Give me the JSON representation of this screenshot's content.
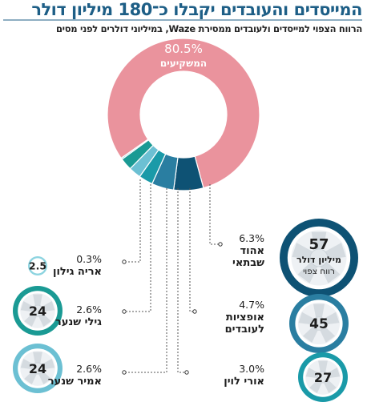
{
  "header": {
    "title": "המייסדים והעובדים יקבלו כ־180 מיליון דולר",
    "subtitle": "הרווח הצפוי למייסדים ולעובדים ממסירת Waze, במיליוני דולרים לפני מסים"
  },
  "colors": {
    "investors": "#ea939d",
    "ehud_shabtai": "#0e5274",
    "options_employees": "#2a7ea1",
    "uri_levine": "#1a9aa8",
    "amir_shinar": "#6cc0d3",
    "gili_shinar": "#1a9a94",
    "arie_gilon": "#8dd4e0"
  },
  "chart_data": {
    "type": "pie",
    "hole": true,
    "slices": [
      {
        "key": "investors",
        "label": "המשקיעים",
        "percent": 80.5
      },
      {
        "key": "ehud_shabtai",
        "label": "אהוד שבתאי",
        "percent": 6.3,
        "amount": 57,
        "amount_note": [
          "מיליון דולר",
          "רווח צפוי"
        ]
      },
      {
        "key": "options_employees",
        "label": "אופציות לעובדים",
        "percent": 4.7,
        "amount": 45
      },
      {
        "key": "uri_levine",
        "label": "אורי לוין",
        "percent": 3.0,
        "amount": 27
      },
      {
        "key": "amir_shinar",
        "label": "אמיר שנער",
        "percent": 2.6,
        "amount": 24
      },
      {
        "key": "gili_shinar",
        "label": "גילי שנער",
        "percent": 2.6,
        "amount": 24
      },
      {
        "key": "arie_gilon",
        "label": "אריה גילון",
        "percent": 0.3,
        "amount": 2.5
      }
    ],
    "display": {
      "investors": "80.5%",
      "ehud_shabtai": {
        "percent": "6.3%",
        "name": [
          "אהוד",
          "שבתאי"
        ],
        "amount": "57",
        "note": [
          "מיליון דולר",
          "רווח צפוי"
        ]
      },
      "options_employees": {
        "percent": "4.7%",
        "name": [
          "אופציות",
          "לעובדים"
        ],
        "amount": "45"
      },
      "uri_levine": {
        "percent": "3.0%",
        "name": [
          "אורי לוין"
        ],
        "amount": "27"
      },
      "amir_shinar": {
        "percent": "2.6%",
        "name": [
          "אמיר שנער"
        ],
        "amount": "24"
      },
      "gili_shinar": {
        "percent": "2.6%",
        "name": [
          "גילי שנער"
        ],
        "amount": "24"
      },
      "arie_gilon": {
        "percent": "0.3%",
        "name": [
          "אריה גילון"
        ],
        "amount": "2.5"
      }
    }
  }
}
